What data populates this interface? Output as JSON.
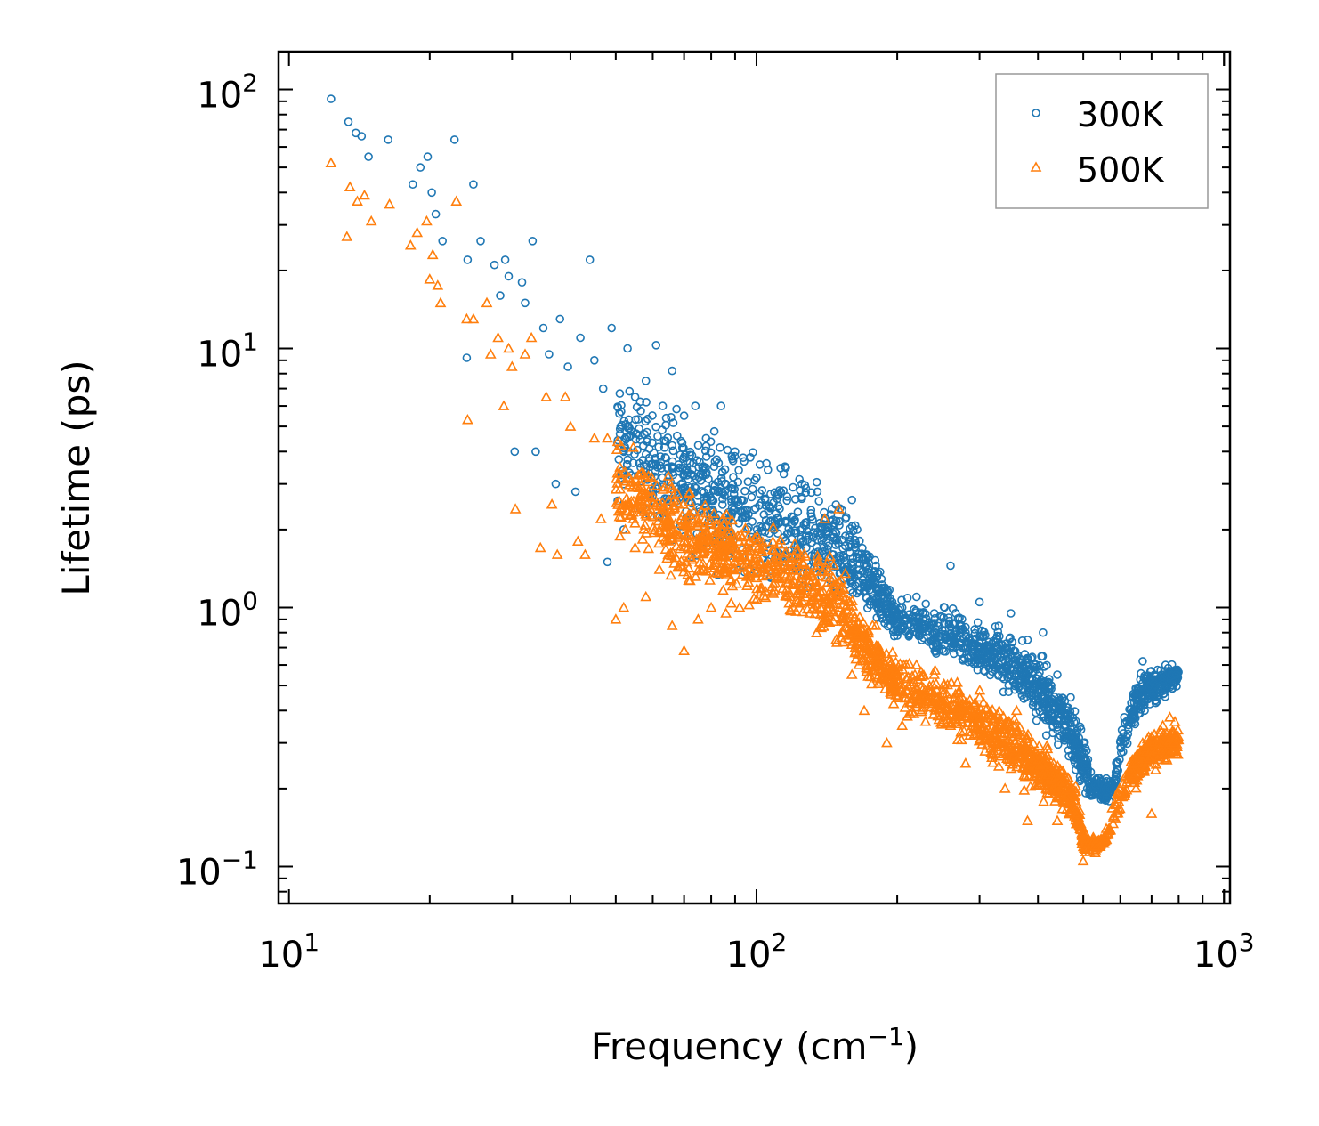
{
  "chart_data": {
    "type": "scatter",
    "title": "",
    "xlabel": "Frequency (cm",
    "xlabel_superscript": "−1",
    "xlabel_suffix": ")",
    "ylabel": "Lifetime (ps)",
    "xscale": "log",
    "yscale": "log",
    "xlim": [
      9.5,
      1030
    ],
    "ylim": [
      0.072,
      140
    ],
    "x_major_ticks": [
      10,
      100,
      1000
    ],
    "y_major_ticks": [
      0.1,
      1,
      10,
      100
    ],
    "x_tick_labels": [
      {
        "base": "10",
        "exp": "1"
      },
      {
        "base": "10",
        "exp": "2"
      },
      {
        "base": "10",
        "exp": "3"
      }
    ],
    "y_tick_labels": [
      {
        "base": "10",
        "exp": "−1"
      },
      {
        "base": "10",
        "exp": "0"
      },
      {
        "base": "10",
        "exp": "1"
      },
      {
        "base": "10",
        "exp": "2"
      }
    ],
    "legend_position": "top-right",
    "series": [
      {
        "name": "300K",
        "marker": "circle",
        "color": "#1f77b4",
        "points": [
          [
            12.3,
            92
          ],
          [
            13.4,
            75
          ],
          [
            13.9,
            68
          ],
          [
            14.3,
            66
          ],
          [
            14.8,
            55
          ],
          [
            16.3,
            64
          ],
          [
            18.4,
            43
          ],
          [
            19.1,
            50
          ],
          [
            19.8,
            55
          ],
          [
            20.2,
            40
          ],
          [
            20.6,
            33
          ],
          [
            21.3,
            26
          ],
          [
            22.6,
            64
          ],
          [
            24.1,
            22
          ],
          [
            24.8,
            43
          ],
          [
            25.7,
            26
          ],
          [
            24.0,
            9.2
          ],
          [
            27.5,
            21
          ],
          [
            28.3,
            16
          ],
          [
            29.0,
            22
          ],
          [
            29.5,
            19
          ],
          [
            30.4,
            4.0
          ],
          [
            31.5,
            18
          ],
          [
            32.0,
            15
          ],
          [
            33.2,
            26
          ],
          [
            33.7,
            4.0
          ],
          [
            35.0,
            12
          ],
          [
            36.0,
            9.5
          ],
          [
            37.2,
            3.0
          ],
          [
            38.0,
            13
          ],
          [
            39.5,
            8.5
          ],
          [
            41.0,
            2.8
          ],
          [
            42.0,
            11
          ],
          [
            44.0,
            22
          ],
          [
            45.0,
            9.0
          ],
          [
            47.0,
            7.0
          ],
          [
            48.0,
            1.5
          ],
          [
            49.0,
            12
          ],
          [
            52.0,
            2.0
          ],
          [
            53.0,
            10
          ],
          [
            55.0,
            6.5
          ],
          [
            58.0,
            7.5
          ],
          [
            61.0,
            10.3
          ],
          [
            63.0,
            6.0
          ],
          [
            66.0,
            8.2
          ],
          [
            70.0,
            5.5
          ],
          [
            74.0,
            6.0
          ],
          [
            78.0,
            4.5
          ],
          [
            84.0,
            6.0
          ],
          [
            90.0,
            4.0
          ],
          [
            97.0,
            3.8
          ],
          [
            105.0,
            3.6
          ],
          [
            115.0,
            3.5
          ],
          [
            125.0,
            3.0
          ],
          [
            135.0,
            2.8
          ],
          [
            145.0,
            2.4
          ],
          [
            155.0,
            2.2
          ],
          [
            160.0,
            2.6
          ],
          [
            170.0,
            1.2
          ],
          [
            180.0,
            1.45
          ],
          [
            190.0,
            1.0
          ],
          [
            205.0,
            1.0
          ],
          [
            220.0,
            1.1
          ],
          [
            240.0,
            0.95
          ],
          [
            260.0,
            1.45
          ],
          [
            280.0,
            0.8
          ],
          [
            300.0,
            1.05
          ],
          [
            330.0,
            0.85
          ],
          [
            350.0,
            0.95
          ],
          [
            380.0,
            0.75
          ],
          [
            410.0,
            0.8
          ],
          [
            440.0,
            0.55
          ],
          [
            470.0,
            0.45
          ],
          [
            490.0,
            0.3
          ],
          [
            510.0,
            0.2
          ],
          [
            540.0,
            0.22
          ],
          [
            570.0,
            0.2
          ],
          [
            640.0,
            0.45
          ],
          [
            670.0,
            0.62
          ],
          [
            710.0,
            0.55
          ],
          [
            750.0,
            0.6
          ],
          [
            790.0,
            0.55
          ]
        ],
        "band": [
          [
            50,
            2.2,
            8.5
          ],
          [
            55,
            2.0,
            8.0
          ],
          [
            60,
            1.8,
            7.5
          ],
          [
            65,
            1.6,
            7.0
          ],
          [
            70,
            1.5,
            6.5
          ],
          [
            75,
            1.3,
            6.0
          ],
          [
            80,
            1.2,
            5.8
          ],
          [
            85,
            1.2,
            5.5
          ],
          [
            90,
            1.15,
            5.0
          ],
          [
            100,
            1.1,
            4.6
          ],
          [
            110,
            1.05,
            4.2
          ],
          [
            120,
            1.0,
            3.9
          ],
          [
            130,
            1.0,
            3.5
          ],
          [
            140,
            0.95,
            3.1
          ],
          [
            150,
            0.9,
            2.8
          ],
          [
            160,
            0.85,
            2.6
          ],
          [
            170,
            0.85,
            2.1
          ],
          [
            180,
            0.8,
            1.7
          ],
          [
            190,
            0.75,
            1.3
          ],
          [
            200,
            0.7,
            1.15
          ],
          [
            220,
            0.68,
            1.1
          ],
          [
            240,
            0.62,
            1.05
          ],
          [
            260,
            0.58,
            1.1
          ],
          [
            280,
            0.55,
            1.0
          ],
          [
            300,
            0.5,
            1.0
          ],
          [
            320,
            0.45,
            0.95
          ],
          [
            340,
            0.42,
            0.9
          ],
          [
            360,
            0.4,
            0.85
          ],
          [
            380,
            0.36,
            0.8
          ],
          [
            400,
            0.33,
            0.75
          ],
          [
            420,
            0.3,
            0.65
          ],
          [
            440,
            0.27,
            0.58
          ],
          [
            460,
            0.25,
            0.5
          ],
          [
            480,
            0.22,
            0.42
          ],
          [
            500,
            0.18,
            0.34
          ],
          [
            520,
            0.17,
            0.25
          ],
          [
            550,
            0.17,
            0.23
          ],
          [
            580,
            0.18,
            0.22
          ],
          [
            630,
            0.3,
            0.5
          ],
          [
            660,
            0.35,
            0.6
          ],
          [
            690,
            0.4,
            0.62
          ],
          [
            720,
            0.38,
            0.6
          ],
          [
            760,
            0.45,
            0.62
          ],
          [
            800,
            0.48,
            0.6
          ]
        ]
      },
      {
        "name": "500K",
        "marker": "triangle",
        "color": "#ff7f0e",
        "points": [
          [
            12.3,
            52
          ],
          [
            13.3,
            27
          ],
          [
            13.5,
            42
          ],
          [
            14.0,
            37
          ],
          [
            14.5,
            39
          ],
          [
            15.0,
            31
          ],
          [
            16.4,
            36
          ],
          [
            18.2,
            25
          ],
          [
            18.8,
            28
          ],
          [
            19.7,
            31
          ],
          [
            20.0,
            18.5
          ],
          [
            20.3,
            23
          ],
          [
            20.8,
            17.5
          ],
          [
            21.1,
            15
          ],
          [
            22.8,
            37
          ],
          [
            24.0,
            13
          ],
          [
            24.1,
            5.3
          ],
          [
            24.8,
            13
          ],
          [
            26.5,
            15
          ],
          [
            27.0,
            9.5
          ],
          [
            28.0,
            11
          ],
          [
            28.8,
            6.0
          ],
          [
            29.5,
            10
          ],
          [
            30.0,
            8.5
          ],
          [
            30.5,
            2.4
          ],
          [
            32.0,
            9.5
          ],
          [
            33.0,
            11
          ],
          [
            34.5,
            1.7
          ],
          [
            35.5,
            6.5
          ],
          [
            36.5,
            2.5
          ],
          [
            37.5,
            1.6
          ],
          [
            39.0,
            6.5
          ],
          [
            40.0,
            5.0
          ],
          [
            41.5,
            1.8
          ],
          [
            43.0,
            1.6
          ],
          [
            45.0,
            4.5
          ],
          [
            46.5,
            2.2
          ],
          [
            48.0,
            4.5
          ],
          [
            50.0,
            0.9
          ],
          [
            52.0,
            1.0
          ],
          [
            55.0,
            1.7
          ],
          [
            58.0,
            1.1
          ],
          [
            62.0,
            1.4
          ],
          [
            66.0,
            0.85
          ],
          [
            70.0,
            0.68
          ],
          [
            75.0,
            0.9
          ],
          [
            80.0,
            1.0
          ],
          [
            86.0,
            0.95
          ],
          [
            92.0,
            1.0
          ],
          [
            100.0,
            1.3
          ],
          [
            108.0,
            1.2
          ],
          [
            118.0,
            1.1
          ],
          [
            130.0,
            0.95
          ],
          [
            140.0,
            2.2
          ],
          [
            150.0,
            2.4
          ],
          [
            160.0,
            0.55
          ],
          [
            170.0,
            0.4
          ],
          [
            180.0,
            0.85
          ],
          [
            190.0,
            0.3
          ],
          [
            205.0,
            0.35
          ],
          [
            220.0,
            0.6
          ],
          [
            240.0,
            0.55
          ],
          [
            260.0,
            0.35
          ],
          [
            280.0,
            0.25
          ],
          [
            300.0,
            0.45
          ],
          [
            320.0,
            0.3
          ],
          [
            340.0,
            0.2
          ],
          [
            360.0,
            0.4
          ],
          [
            380.0,
            0.15
          ],
          [
            410.0,
            0.25
          ],
          [
            440.0,
            0.15
          ],
          [
            470.0,
            0.2
          ],
          [
            500.0,
            0.105
          ],
          [
            530.0,
            0.12
          ],
          [
            560.0,
            0.14
          ],
          [
            640.0,
            0.22
          ],
          [
            670.0,
            0.3
          ],
          [
            700.0,
            0.16
          ],
          [
            740.0,
            0.35
          ],
          [
            780.0,
            0.3
          ]
        ],
        "band": [
          [
            50,
            1.7,
            5.0
          ],
          [
            55,
            1.6,
            4.5
          ],
          [
            60,
            1.3,
            4.0
          ],
          [
            65,
            1.2,
            3.6
          ],
          [
            70,
            1.1,
            3.3
          ],
          [
            75,
            1.05,
            3.1
          ],
          [
            80,
            1.0,
            3.0
          ],
          [
            85,
            1.0,
            2.8
          ],
          [
            90,
            0.95,
            2.6
          ],
          [
            100,
            0.9,
            2.4
          ],
          [
            110,
            0.85,
            2.2
          ],
          [
            120,
            0.8,
            2.1
          ],
          [
            130,
            0.75,
            2.0
          ],
          [
            140,
            0.7,
            1.8
          ],
          [
            150,
            0.62,
            1.6
          ],
          [
            160,
            0.55,
            1.3
          ],
          [
            170,
            0.48,
            1.0
          ],
          [
            180,
            0.45,
            0.85
          ],
          [
            190,
            0.4,
            0.75
          ],
          [
            200,
            0.38,
            0.7
          ],
          [
            220,
            0.35,
            0.65
          ],
          [
            240,
            0.32,
            0.6
          ],
          [
            260,
            0.3,
            0.55
          ],
          [
            280,
            0.28,
            0.55
          ],
          [
            300,
            0.26,
            0.5
          ],
          [
            320,
            0.24,
            0.45
          ],
          [
            340,
            0.22,
            0.42
          ],
          [
            360,
            0.2,
            0.4
          ],
          [
            380,
            0.19,
            0.36
          ],
          [
            400,
            0.18,
            0.33
          ],
          [
            420,
            0.17,
            0.3
          ],
          [
            440,
            0.16,
            0.27
          ],
          [
            460,
            0.15,
            0.24
          ],
          [
            480,
            0.14,
            0.22
          ],
          [
            500,
            0.11,
            0.14
          ],
          [
            530,
            0.11,
            0.13
          ],
          [
            560,
            0.12,
            0.14
          ],
          [
            630,
            0.18,
            0.28
          ],
          [
            660,
            0.2,
            0.33
          ],
          [
            690,
            0.22,
            0.35
          ],
          [
            720,
            0.22,
            0.36
          ],
          [
            760,
            0.24,
            0.38
          ],
          [
            800,
            0.25,
            0.38
          ]
        ]
      }
    ]
  }
}
